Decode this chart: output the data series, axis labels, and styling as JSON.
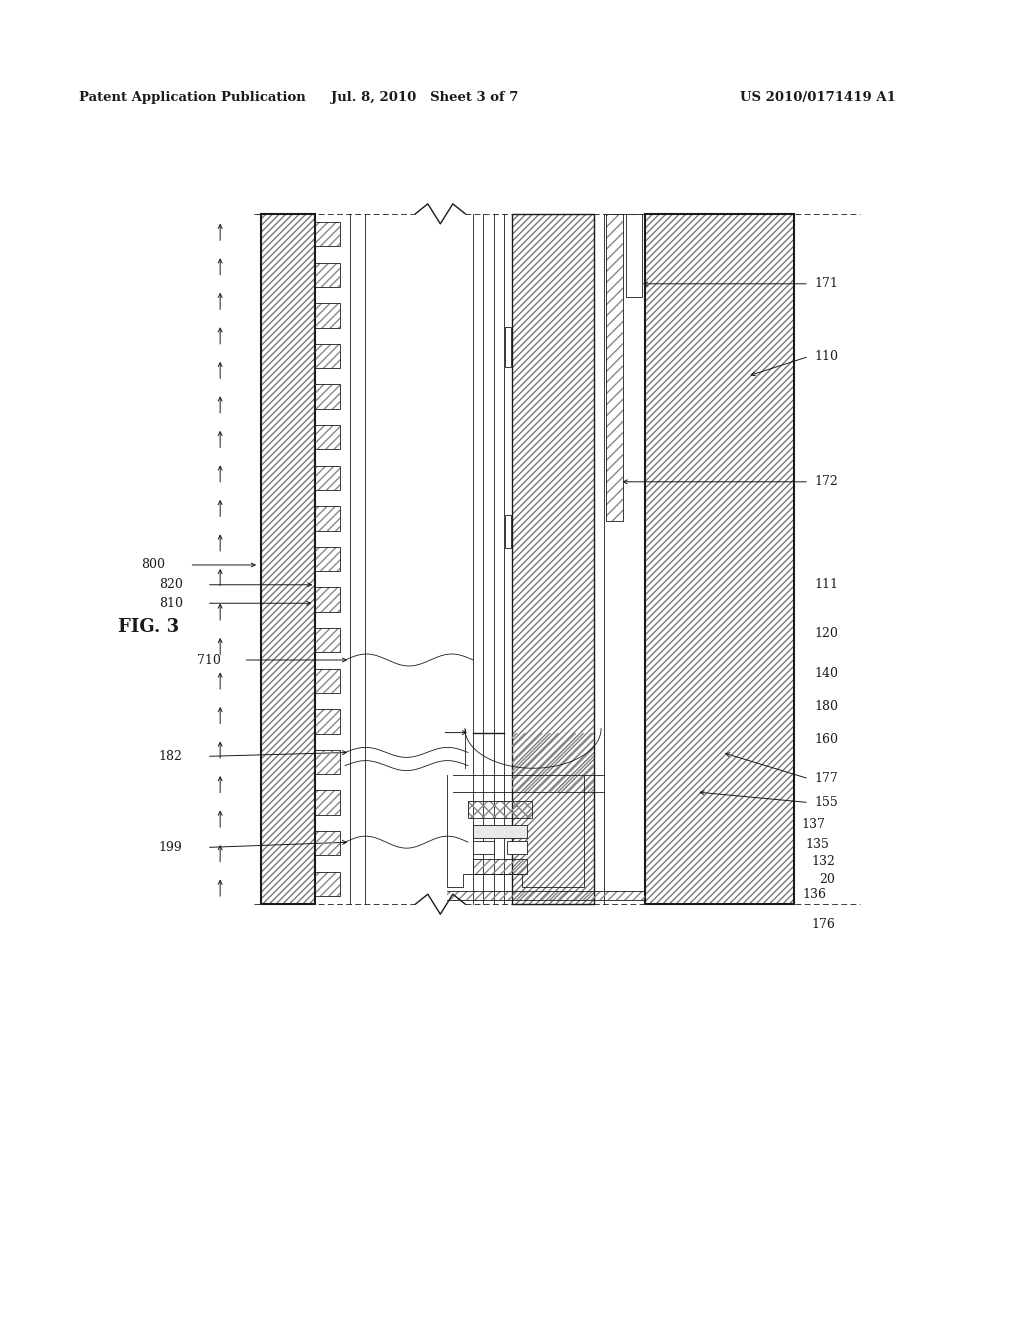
{
  "bg_color": "#ffffff",
  "lc": "#1a1a1a",
  "header_left": "Patent Application Publication",
  "header_mid": "Jul. 8, 2010   Sheet 3 of 7",
  "header_right": "US 2010/0171419 A1",
  "fig_label": "FIG. 3",
  "label_fs": 9,
  "header_fs": 9.5,
  "fig_fs": 13
}
